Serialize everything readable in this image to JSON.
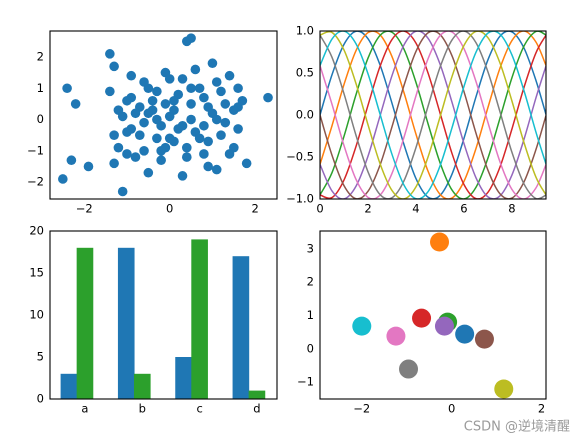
{
  "chart_data": [
    {
      "type": "scatter",
      "color": "#1f77b4",
      "grid": false,
      "x": [
        -2.4,
        -2.5,
        -2.3,
        -2.2,
        -1.9,
        -1.4,
        -1.4,
        -1.3,
        -1.2,
        -1.1,
        -1.0,
        -0.9,
        -0.8,
        -0.7,
        -0.6,
        -0.5,
        -0.4,
        -0.3,
        -0.2,
        -0.1,
        0.0,
        0.1,
        0.2,
        0.3,
        0.4,
        0.5,
        0.6,
        0.7,
        0.8,
        0.9,
        1.0,
        1.1,
        1.2,
        1.3,
        1.4,
        1.5,
        1.6,
        1.7,
        1.8,
        2.3,
        -1.3,
        -1.1,
        -1.0,
        -0.9,
        -0.8,
        -0.7,
        -0.6,
        -0.5,
        -0.4,
        -0.3,
        -0.2,
        -0.1,
        0.0,
        0.1,
        0.2,
        0.3,
        0.4,
        0.5,
        0.6,
        0.7,
        0.8,
        0.9,
        1.0,
        1.1,
        1.2,
        1.4,
        1.6,
        -1.2,
        -0.9,
        -0.6,
        -0.3,
        0.0,
        0.3,
        0.5,
        0.8,
        1.1,
        1.3,
        1.5,
        0.4,
        0.5,
        -0.1,
        -1.3,
        -1.0,
        0.1,
        0.9,
        1.6,
        -0.5,
        -0.2
      ],
      "values": [
        1.0,
        -1.9,
        -1.3,
        0.5,
        -1.5,
        2.1,
        0.9,
        1.7,
        0.3,
        -2.3,
        -0.4,
        0.7,
        -1.2,
        0.4,
        -1.0,
        1.0,
        0.6,
        -0.6,
        -0.2,
        1.5,
        1.3,
        -0.7,
        0.8,
        -1.8,
        2.5,
        2.6,
        -0.4,
        1.0,
        -1.1,
        0.4,
        0.2,
        -1.6,
        0.9,
        -0.1,
        1.4,
        -0.9,
        0.4,
        0.6,
        -1.4,
        0.7,
        -0.5,
        0.1,
        -1.1,
        -0.3,
        0.2,
        -0.5,
        1.2,
        -1.7,
        0.3,
        0.0,
        -1.3,
        0.5,
        -0.6,
        0.3,
        -0.3,
        1.3,
        -0.9,
        0.0,
        1.6,
        -0.6,
        0.7,
        -1.5,
        1.8,
        0.0,
        -0.5,
        -1.1,
        1.0,
        -0.9,
        1.4,
        -0.1,
        0.9,
        0.1,
        -0.2,
        1.0,
        -0.2,
        1.2,
        0.5,
        0.3,
        -1.2,
        0.5,
        -0.9,
        -1.4,
        0.6,
        0.6,
        -0.7,
        -0.3,
        0.2,
        -1.0
      ],
      "xlim": [
        -2.8,
        2.51
      ],
      "ylim": [
        -2.54,
        2.83
      ],
      "xticks": [
        {
          "value": -2,
          "label": "−2"
        },
        0,
        2
      ],
      "yticks": [
        {
          "value": -2,
          "label": "−2"
        },
        {
          "value": -1,
          "label": "−1"
        },
        0,
        1,
        2
      ]
    },
    {
      "type": "line",
      "grid": false,
      "x": [
        0,
        0.5,
        1,
        1.5,
        2,
        2.5,
        3,
        3.5,
        4,
        4.5,
        5,
        5.5,
        6,
        6.5,
        7,
        7.5,
        8,
        8.5,
        9,
        9.42
      ],
      "series": [
        {
          "color": "#1f77b4",
          "values": [
            0,
            0.479,
            0.841,
            0.997,
            0.909,
            0.598,
            0.141,
            -0.351,
            -0.757,
            -0.978,
            -0.959,
            -0.706,
            -0.279,
            0.215,
            0.657,
            0.938,
            0.989,
            0.798,
            0.412,
            0.005
          ]
        },
        {
          "color": "#ff7f0e",
          "values": [
            -0.588,
            -0.128,
            0.363,
            0.766,
            0.98,
            0.955,
            0.696,
            0.266,
            -0.228,
            -0.667,
            -0.943,
            -0.988,
            -0.79,
            -0.4,
            0.089,
            0.556,
            0.886,
            1.0,
            0.869,
            0.59
          ]
        },
        {
          "color": "#2ca02c",
          "values": [
            -0.951,
            -0.687,
            -0.254,
            0.241,
            0.676,
            0.947,
            0.985,
            0.783,
            0.388,
            -0.101,
            -0.565,
            -0.892,
            -0.999,
            -0.862,
            -0.514,
            -0.04,
            0.444,
            0.819,
            0.994,
            0.953
          ]
        },
        {
          "color": "#d62728",
          "values": [
            -0.951,
            -0.983,
            -0.774,
            -0.375,
            0.115,
            0.577,
            0.898,
            0.999,
            0.856,
            0.503,
            0.027,
            -0.456,
            -0.827,
            -0.995,
            -0.92,
            -0.62,
            -0.167,
            0.326,
            0.739,
            0.95
          ]
        },
        {
          "color": "#9467bd",
          "values": [
            -0.588,
            -0.904,
            -0.998,
            -0.848,
            -0.491,
            -0.013,
            0.468,
            0.834,
            0.997,
            0.915,
            0.609,
            0.154,
            -0.339,
            -0.746,
            -0.975,
            -0.963,
            -0.715,
            -0.292,
            0.203,
            0.584
          ]
        },
        {
          "color": "#8c564b",
          "values": [
            0,
            -0.479,
            -0.841,
            -0.997,
            -0.909,
            -0.598,
            -0.141,
            0.351,
            0.757,
            0.978,
            0.959,
            0.706,
            0.279,
            -0.215,
            -0.657,
            -0.938,
            -0.989,
            -0.798,
            -0.412,
            -0.005
          ]
        },
        {
          "color": "#e377c2",
          "values": [
            0.588,
            0.128,
            -0.363,
            -0.766,
            -0.98,
            -0.955,
            -0.696,
            -0.266,
            0.228,
            0.667,
            0.943,
            0.988,
            0.79,
            0.4,
            -0.089,
            -0.556,
            -0.886,
            -1.0,
            -0.869,
            -0.59
          ]
        },
        {
          "color": "#7f7f7f",
          "values": [
            0.951,
            0.687,
            0.254,
            -0.241,
            -0.676,
            -0.947,
            -0.985,
            -0.783,
            -0.388,
            0.101,
            0.565,
            0.892,
            0.999,
            0.862,
            0.514,
            0.04,
            -0.444,
            -0.819,
            -0.994,
            -0.953
          ]
        },
        {
          "color": "#bcbd22",
          "values": [
            0.951,
            0.983,
            0.774,
            0.375,
            -0.115,
            -0.577,
            -0.898,
            -0.999,
            -0.856,
            -0.503,
            -0.027,
            0.456,
            0.827,
            0.995,
            0.92,
            0.62,
            0.167,
            -0.326,
            -0.739,
            -0.95
          ]
        },
        {
          "color": "#17becf",
          "values": [
            0.588,
            0.904,
            0.998,
            0.848,
            0.491,
            0.013,
            -0.468,
            -0.834,
            -0.997,
            -0.915,
            -0.609,
            -0.154,
            0.339,
            0.746,
            0.975,
            0.963,
            0.715,
            0.292,
            -0.203,
            -0.584
          ]
        }
      ],
      "xlim": [
        0,
        9.42
      ],
      "ylim": [
        -1,
        1
      ],
      "xticks": [
        0,
        2,
        4,
        6,
        8
      ],
      "yticks": [
        {
          "value": -1,
          "label": "−1.0"
        },
        {
          "value": -0.5,
          "label": "−0.5"
        },
        {
          "value": 0,
          "label": "0.0"
        },
        {
          "value": 0.5,
          "label": "0.5"
        },
        {
          "value": 1,
          "label": "1.0"
        }
      ]
    },
    {
      "type": "bar",
      "grid": false,
      "categories": [
        "a",
        "b",
        "c",
        "d"
      ],
      "series": [
        {
          "color": "#1f77b4",
          "values": [
            3,
            18,
            5,
            17
          ]
        },
        {
          "color": "#2ca02c",
          "values": [
            18,
            3,
            19,
            1
          ]
        }
      ],
      "ylim": [
        0,
        20
      ],
      "yticks": [
        0,
        5,
        10,
        15,
        20
      ]
    },
    {
      "type": "scatter",
      "grid": false,
      "x": [
        0.29,
        -0.27,
        -0.09,
        -0.67,
        -0.16,
        0.73,
        -1.24,
        -0.96,
        1.16,
        -2.0
      ],
      "values": [
        0.44,
        3.21,
        0.8,
        0.92,
        0.68,
        0.29,
        0.38,
        -0.61,
        -1.21,
        0.68
      ],
      "colors": [
        "#1f77b4",
        "#ff7f0e",
        "#2ca02c",
        "#d62728",
        "#9467bd",
        "#8c564b",
        "#e377c2",
        "#7f7f7f",
        "#bcbd22",
        "#17becf"
      ],
      "xlim": [
        -2.93,
        2.1
      ],
      "ylim": [
        -1.51,
        3.54
      ],
      "xticks": [
        {
          "value": -2,
          "label": "−2"
        },
        0,
        2
      ],
      "yticks": [
        {
          "value": -1,
          "label": "−1"
        },
        0,
        1,
        2,
        3
      ]
    }
  ],
  "watermark": "CSDN @逆境清醒"
}
